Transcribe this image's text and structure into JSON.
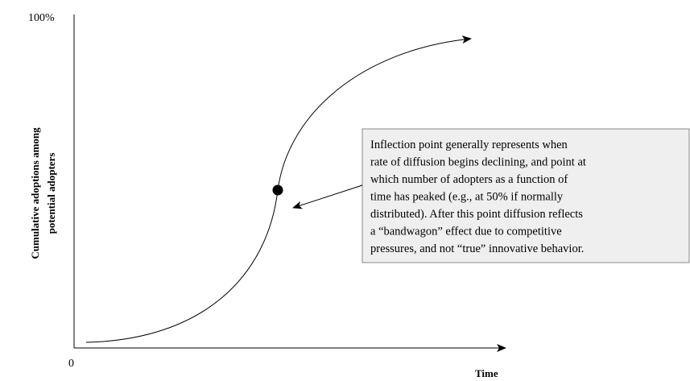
{
  "axis": {
    "y_top_label": "100%",
    "origin_label": "0",
    "x_label": "Time",
    "y_label_lines": [
      "Cumulative adoptions among",
      "potential adopters"
    ]
  },
  "annotation": {
    "lines": [
      "Inflection point generally represents when",
      "rate of diffusion begins declining, and point at",
      "which number of adopters as a function of",
      "time has peaked (e.g., at 50% if normally",
      "distributed). After this point diffusion reflects",
      "a “bandwagon” effect due to competitive",
      "pressures, and not “true” innovative behavior."
    ]
  }
}
